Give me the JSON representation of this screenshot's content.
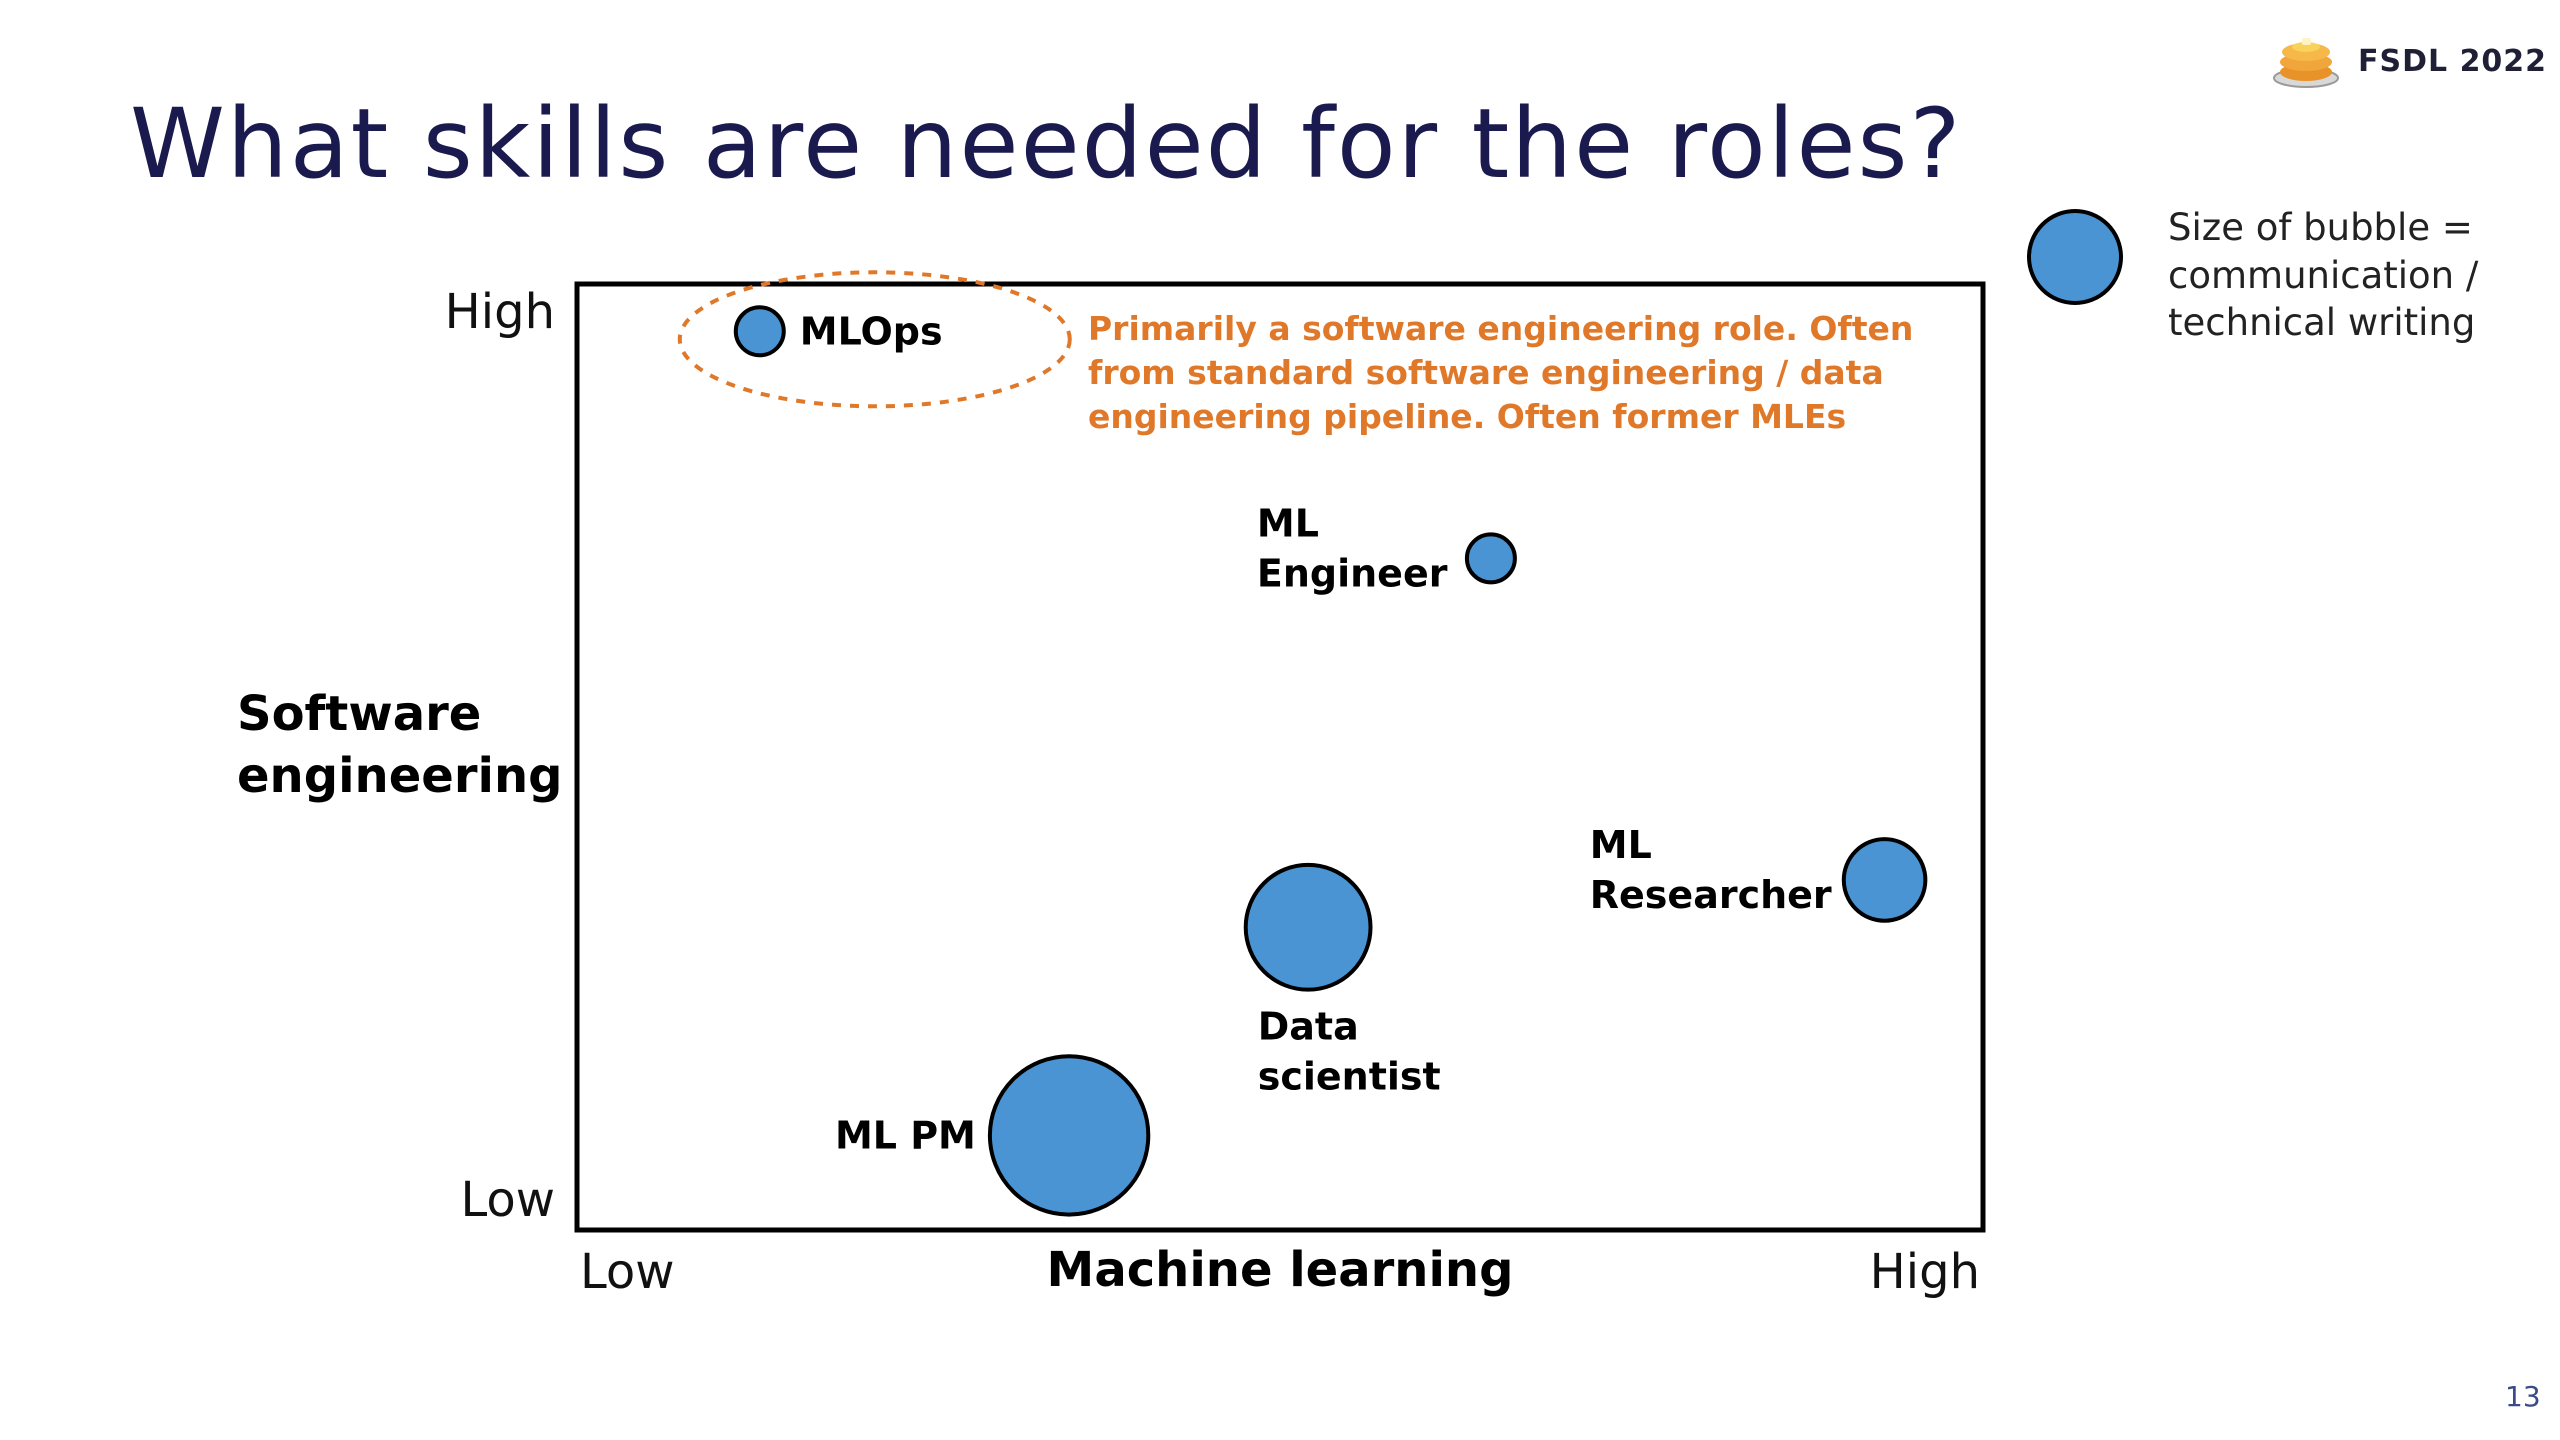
{
  "slide": {
    "title": "What skills are needed for the roles?",
    "brand": "FSDL 2022",
    "page_number": "13"
  },
  "colors": {
    "bubble": "#4a94d4",
    "annotation": "#e0782a",
    "title": "#1b1a4e"
  },
  "chart_data": {
    "type": "scatter",
    "title": "",
    "xlabel": "Machine learning",
    "ylabel": [
      "Software",
      "engineering"
    ],
    "x_ticks": [
      "Low",
      "High"
    ],
    "y_ticks": [
      "Low",
      "High"
    ],
    "xlim": [
      0,
      10
    ],
    "ylim": [
      0,
      10
    ],
    "size_meaning": "communication / technical writing",
    "points": [
      {
        "name": "MLOps",
        "label_lines": [
          "MLOps"
        ],
        "x": 1.3,
        "y": 9.5,
        "size": 1.0,
        "label_side": "right"
      },
      {
        "name": "ML Engineer",
        "label_lines": [
          "ML",
          "Engineer"
        ],
        "x": 6.5,
        "y": 7.1,
        "size": 1.0,
        "label_side": "left"
      },
      {
        "name": "ML Researcher",
        "label_lines": [
          "ML",
          "Researcher"
        ],
        "x": 9.3,
        "y": 3.7,
        "size": 1.7,
        "label_side": "left"
      },
      {
        "name": "Data scientist",
        "label_lines": [
          "Data",
          "scientist"
        ],
        "x": 5.2,
        "y": 3.2,
        "size": 2.6,
        "label_side": "below"
      },
      {
        "name": "ML PM",
        "label_lines": [
          "ML PM"
        ],
        "x": 3.5,
        "y": 1.0,
        "size": 3.3,
        "label_side": "left"
      }
    ],
    "annotations": [
      {
        "target": "MLOps",
        "lines": [
          "Primarily a software engineering role. Often",
          "from standard software engineering / data",
          "engineering pipeline. Often former MLEs"
        ]
      }
    ],
    "legend": {
      "lines": [
        "Size of bubble =",
        "communication /",
        "technical writing"
      ],
      "size": 3.2
    }
  }
}
